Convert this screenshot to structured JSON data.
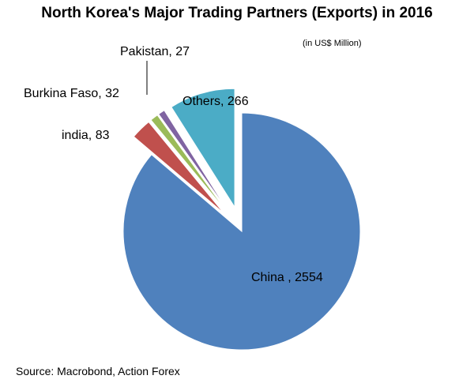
{
  "title": "North Korea's Major Trading Partners (Exports) in 2016",
  "units_note": "(in US$ Million)",
  "source": "Source: Macrobond, Action Forex",
  "chart_data": {
    "type": "pie",
    "title": "North Korea's Major Trading Partners (Exports) in 2016",
    "slices": [
      {
        "name": "China",
        "value": 2554,
        "label": "China , 2554",
        "color": "#4F81BD",
        "exploded": false
      },
      {
        "name": "india",
        "value": 83,
        "label": "india, 83",
        "color": "#C0504D",
        "exploded": true
      },
      {
        "name": "Burkina Faso",
        "value": 32,
        "label": "Burkina Faso, 32",
        "color": "#9BBB59",
        "exploded": true
      },
      {
        "name": "Pakistan",
        "value": 27,
        "label": "Pakistan, 27",
        "color": "#8064A2",
        "exploded": true
      },
      {
        "name": "Others",
        "value": 266,
        "label": "Others, 266",
        "color": "#4BACC6",
        "exploded": true
      }
    ],
    "start_angle": "12 o'clock",
    "direction": "clockwise",
    "legend": "none"
  }
}
